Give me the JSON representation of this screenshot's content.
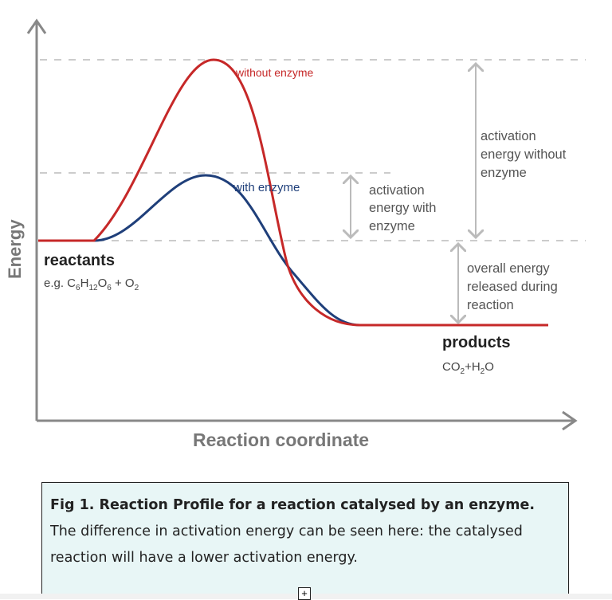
{
  "diagram": {
    "y_axis_label": "Energy",
    "x_axis_label": "Reaction coordinate",
    "curve_without_label": "without enzyme",
    "curve_with_label": "with enzyme",
    "activation_with": [
      "activation",
      "energy with",
      "enzyme"
    ],
    "activation_without": [
      "activation",
      "energy without",
      "enzyme"
    ],
    "overall": [
      "overall energy",
      "released during",
      "reaction"
    ],
    "reactants_label": "reactants",
    "reactants_formula": [
      "e.g. C",
      "6",
      "H",
      "12",
      "O",
      "6",
      " + O",
      "2"
    ],
    "products_label": "products",
    "products_formula": [
      "CO",
      "2",
      "+H",
      "2",
      "O"
    ],
    "colors": {
      "without_enzyme": "#c62828",
      "with_enzyme": "#1f3f7a",
      "axis": "#888888",
      "annotation": "#555555"
    }
  },
  "caption": {
    "bold": "Fig 1. Reaction Profile for a reaction catalysed by an enzyme.",
    "text": " The difference in activation energy can be seen here: the catalysed reaction will have a lower activation energy."
  },
  "expand_button": "+"
}
